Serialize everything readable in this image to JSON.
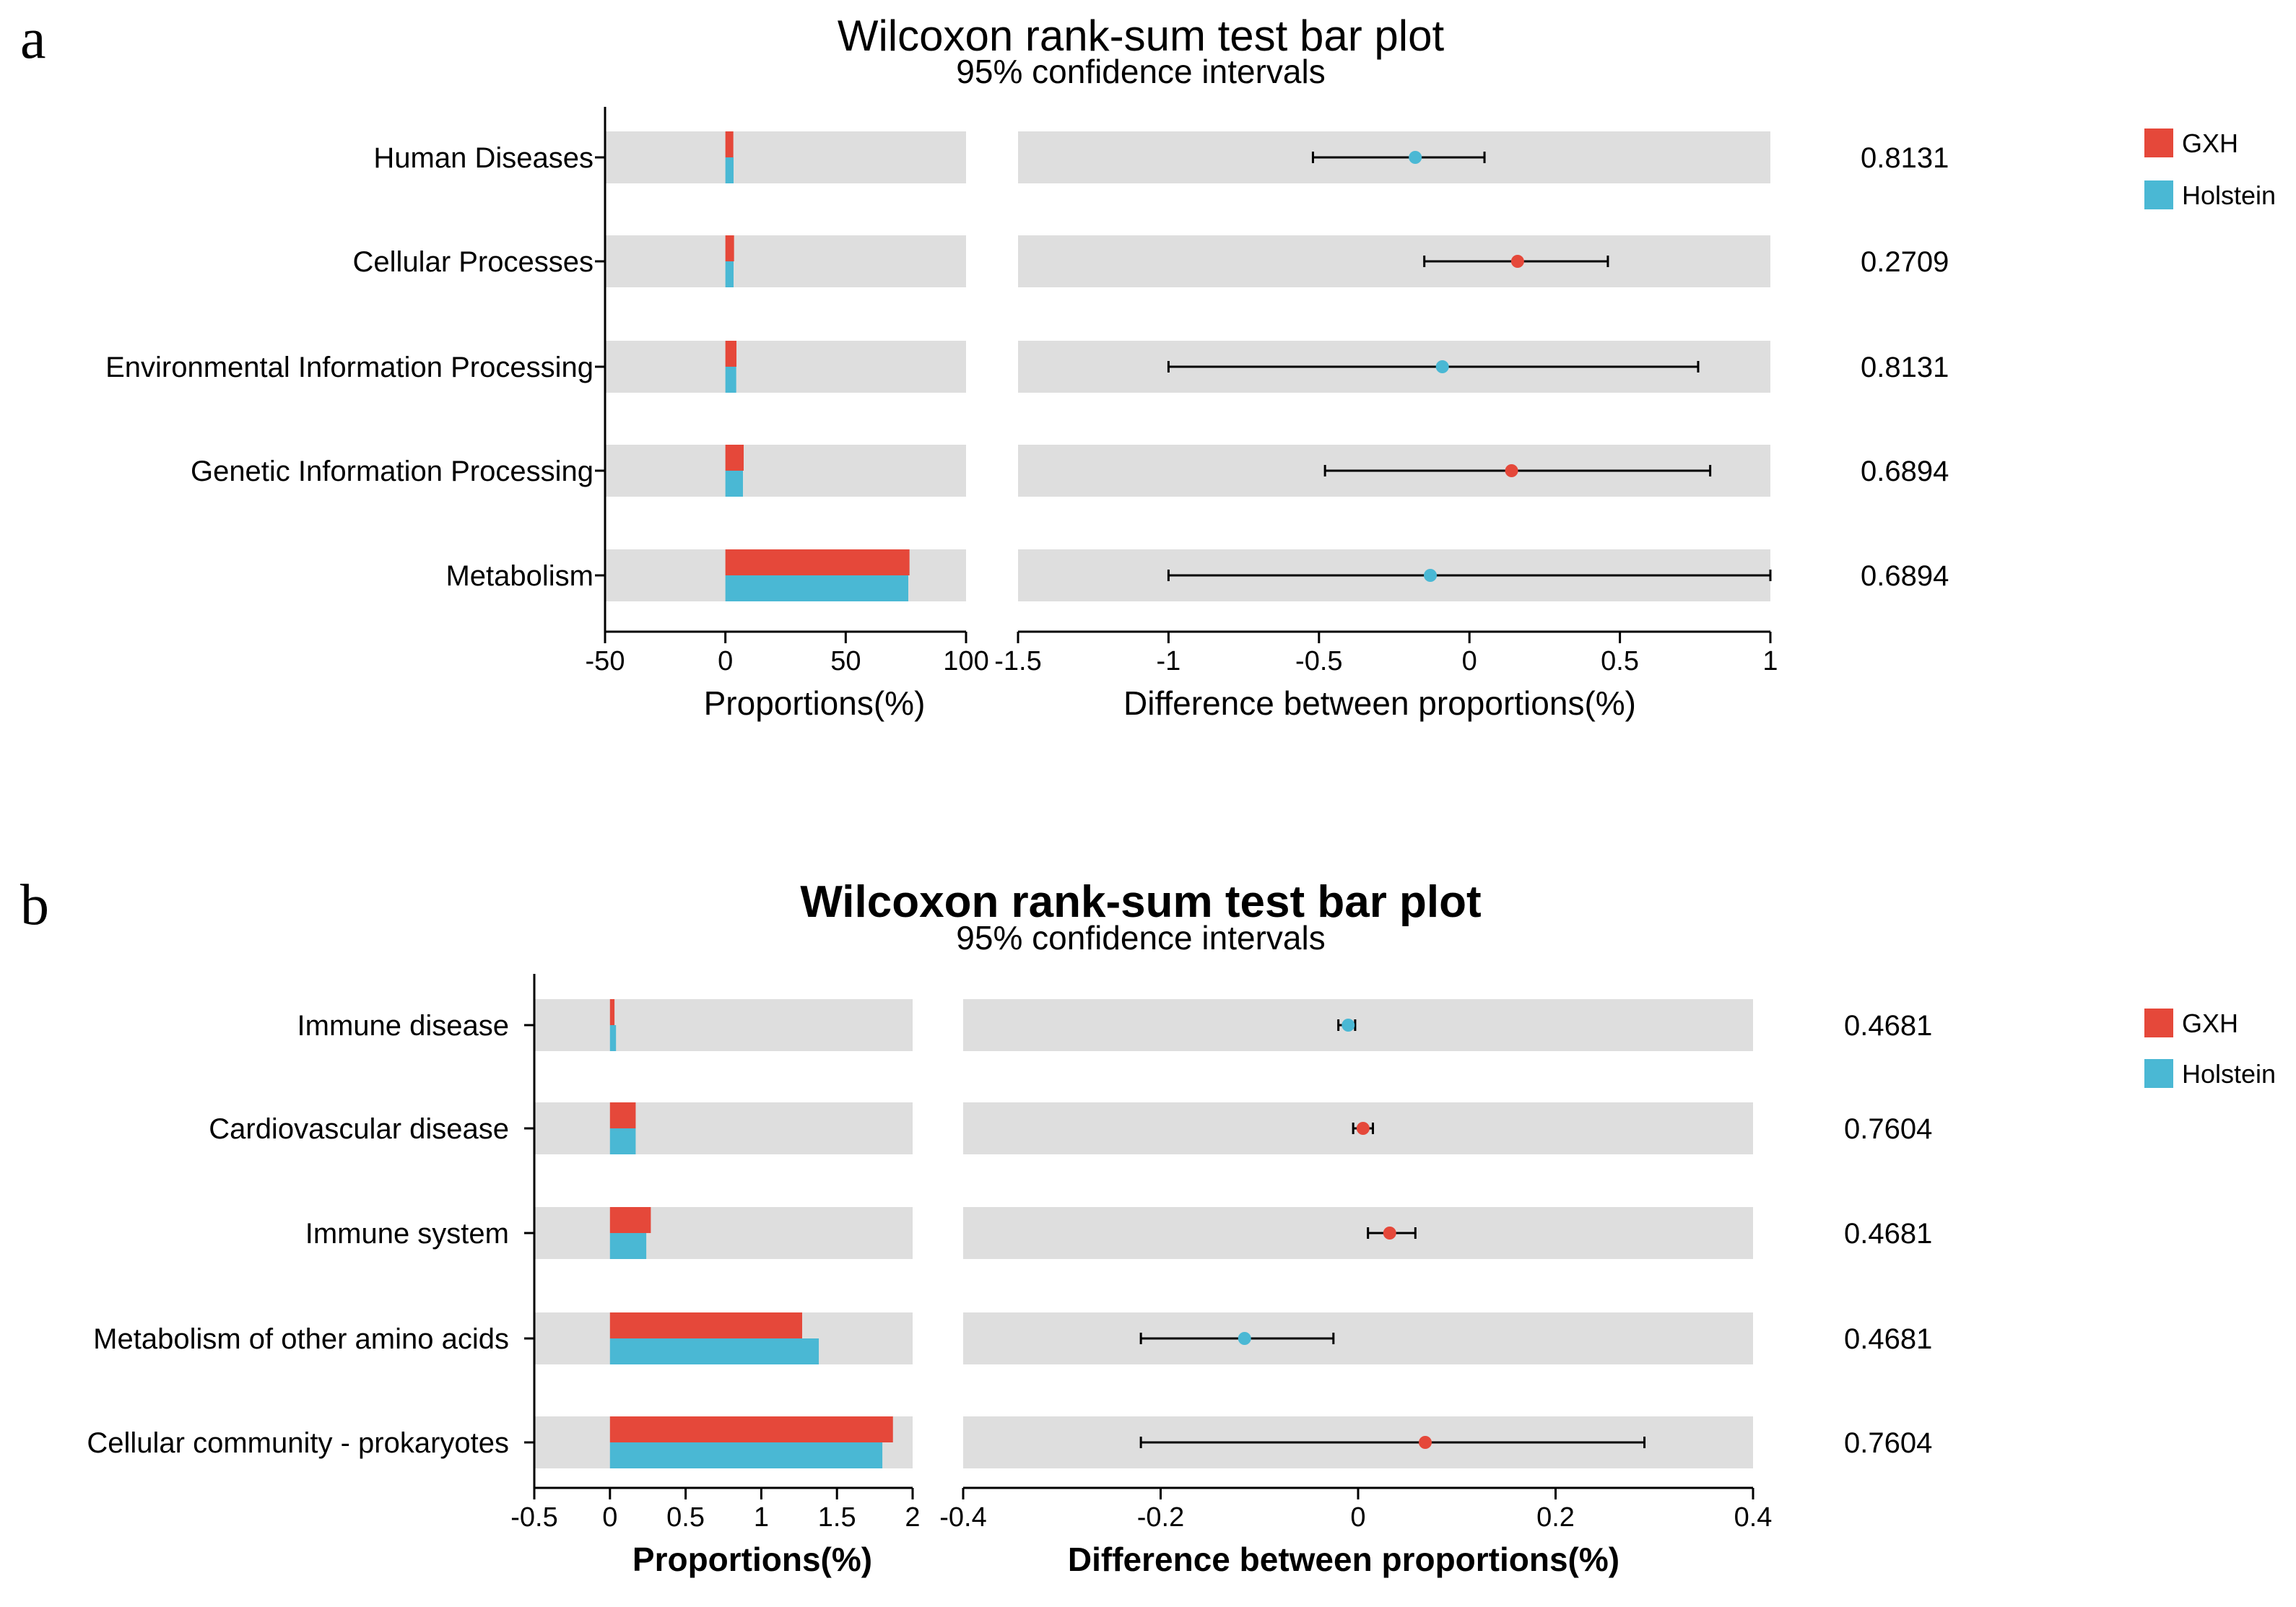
{
  "colors": {
    "gxh": "#e5483a",
    "holstein": "#4ab8d4",
    "band": "#dedede",
    "axis": "#000000"
  },
  "chart_data": [
    {
      "panel_letter": "a",
      "type": "bar",
      "title": "Wilcoxon rank-sum test bar plot",
      "subtitle": "95% confidence intervals",
      "categories": [
        "Human Diseases",
        "Cellular Processes",
        "Environmental Information Processing",
        "Genetic Information Processing",
        "Metabolism"
      ],
      "series": [
        {
          "name": "GXH",
          "values": [
            3.3,
            3.6,
            4.6,
            7.6,
            76.5
          ]
        },
        {
          "name": "Holstein",
          "values": [
            3.4,
            3.4,
            4.5,
            7.3,
            76.0
          ]
        }
      ],
      "bar_xlim": [
        -50,
        100
      ],
      "bar_ticks": [
        "-50",
        "0",
        "50",
        "100"
      ],
      "bar_xlabel": "Proportions(%)",
      "diff": {
        "estimates": [
          -0.18,
          0.16,
          -0.09,
          0.14,
          -0.13
        ],
        "ci_low": [
          -0.52,
          -0.15,
          -1.0,
          -0.48,
          -1.0
        ],
        "ci_high": [
          0.05,
          0.46,
          0.76,
          0.8,
          1.0
        ],
        "higher_group": [
          "Holstein",
          "GXH",
          "Holstein",
          "GXH",
          "Holstein"
        ]
      },
      "diff_xlim": [
        -1.5,
        1
      ],
      "diff_ticks": [
        "-1.5",
        "-1",
        "-0.5",
        "0",
        "0.5",
        "1"
      ],
      "diff_xlabel": "Difference between proportions(%)",
      "p_values": [
        "0.8131",
        "0.2709",
        "0.8131",
        "0.6894",
        "0.6894"
      ],
      "legend": [
        "GXH",
        "Holstein"
      ]
    },
    {
      "panel_letter": "b",
      "type": "bar",
      "title": "Wilcoxon rank-sum test bar plot",
      "subtitle": "95% confidence intervals",
      "categories": [
        "Immune disease",
        "Cardiovascular disease",
        "Immune system",
        "Metabolism of other amino acids",
        "Cellular community - prokaryotes"
      ],
      "series": [
        {
          "name": "GXH",
          "values": [
            0.03,
            0.17,
            0.27,
            1.27,
            1.87
          ]
        },
        {
          "name": "Holstein",
          "values": [
            0.04,
            0.17,
            0.24,
            1.38,
            1.8
          ]
        }
      ],
      "bar_xlim": [
        -0.5,
        2
      ],
      "bar_ticks": [
        "-0.5",
        "0",
        "0.5",
        "1",
        "1.5",
        "2"
      ],
      "bar_xlabel": "Proportions(%)",
      "diff": {
        "estimates": [
          -0.01,
          0.005,
          0.032,
          -0.115,
          0.068
        ],
        "ci_low": [
          -0.02,
          -0.005,
          0.01,
          -0.22,
          -0.22
        ],
        "ci_high": [
          -0.003,
          0.015,
          0.058,
          -0.025,
          0.29
        ],
        "higher_group": [
          "Holstein",
          "GXH",
          "GXH",
          "Holstein",
          "GXH"
        ]
      },
      "diff_xlim": [
        -0.4,
        0.4
      ],
      "diff_ticks": [
        "-0.4",
        "-0.2",
        "0",
        "0.2",
        "0.4"
      ],
      "diff_xlabel": "Difference between proportions(%)",
      "p_values": [
        "0.4681",
        "0.7604",
        "0.4681",
        "0.4681",
        "0.7604"
      ],
      "legend": [
        "GXH",
        "Holstein"
      ]
    }
  ]
}
